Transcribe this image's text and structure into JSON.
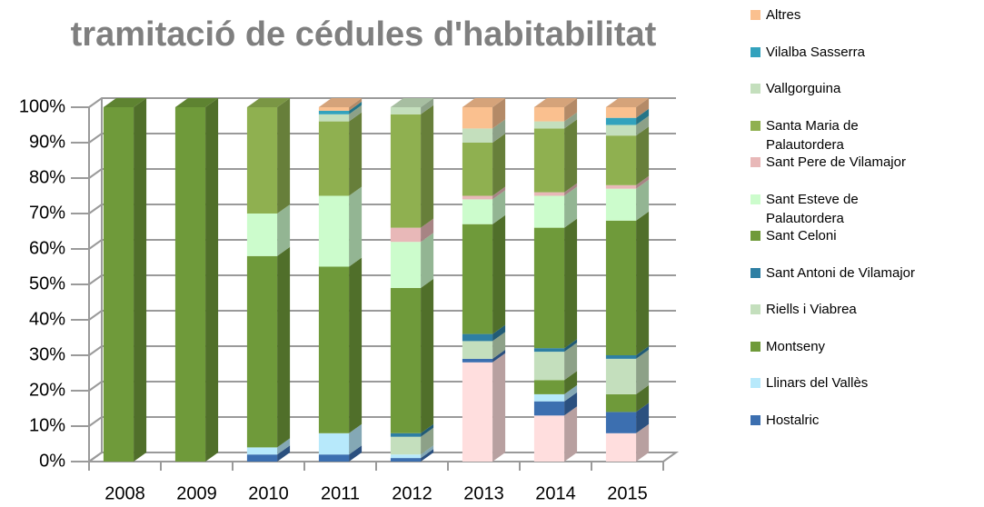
{
  "chart_data": {
    "type": "bar",
    "stacked": true,
    "three_d": true,
    "title": "tramitació de cédules d'habitabilitat",
    "categories": [
      "2008",
      "2009",
      "2010",
      "2011",
      "2012",
      "2013",
      "2014",
      "2015"
    ],
    "ylim": [
      0,
      100
    ],
    "yticks": [
      {
        "value": 0,
        "label": "0%"
      },
      {
        "value": 10,
        "label": "10%"
      },
      {
        "value": 20,
        "label": "20%"
      },
      {
        "value": 30,
        "label": "30%"
      },
      {
        "value": 40,
        "label": "40%"
      },
      {
        "value": 50,
        "label": "50%"
      },
      {
        "value": 60,
        "label": "60%"
      },
      {
        "value": 70,
        "label": "70%"
      },
      {
        "value": 80,
        "label": "80%"
      },
      {
        "value": 90,
        "label": "90%"
      },
      {
        "value": 100,
        "label": "100%"
      }
    ],
    "grid": true,
    "series": [
      {
        "name": null,
        "color": "#ffdede",
        "values": [
          0,
          0,
          0,
          0,
          0,
          28,
          13,
          8
        ]
      },
      {
        "name": "Hostalric",
        "color": "#3c6fb0",
        "values": [
          0,
          0,
          2,
          2,
          1,
          1,
          4,
          6
        ]
      },
      {
        "name": "Llinars del Vallès",
        "color": "#b7e9fb",
        "values": [
          0,
          0,
          2,
          6,
          1,
          0,
          2,
          0
        ]
      },
      {
        "name": "Montseny",
        "color": "#6f9a3a",
        "values": [
          0,
          0,
          0,
          0,
          0,
          0,
          4,
          5
        ]
      },
      {
        "name": "Riells i Viabrea",
        "color": "#c4dfbd",
        "values": [
          0,
          0,
          0,
          0,
          5,
          5,
          8,
          10
        ]
      },
      {
        "name": "Sant Antoni de Vilamajor",
        "color": "#2e7fa3",
        "values": [
          0,
          0,
          0,
          0,
          1,
          2,
          1,
          1
        ]
      },
      {
        "name": "Sant Celoni",
        "color": "#6f9a3a",
        "values": [
          100,
          100,
          54,
          47,
          41,
          31,
          34,
          38
        ]
      },
      {
        "name": "Sant Esteve de Palautordera",
        "color": "#ccfccc",
        "values": [
          0,
          0,
          12,
          20,
          13,
          7,
          9,
          9
        ]
      },
      {
        "name": "Sant Pere de Vilamajor",
        "color": "#e8b8b8",
        "values": [
          0,
          0,
          0,
          0,
          4,
          1,
          1,
          1
        ]
      },
      {
        "name": "Santa Maria de Palautordera",
        "color": "#8fb050",
        "values": [
          0,
          0,
          30,
          21,
          32,
          15,
          18,
          14
        ]
      },
      {
        "name": "Vallgorguina",
        "color": "#c4dfbd",
        "values": [
          0,
          0,
          0,
          2,
          2,
          4,
          2,
          3
        ]
      },
      {
        "name": "Vilalba Sasserra",
        "color": "#33a2bd",
        "values": [
          0,
          0,
          0,
          1,
          0,
          0,
          0,
          2
        ]
      },
      {
        "name": "Altres",
        "color": "#fac08f",
        "values": [
          0,
          0,
          0,
          1,
          0,
          6,
          4,
          3
        ]
      }
    ]
  }
}
